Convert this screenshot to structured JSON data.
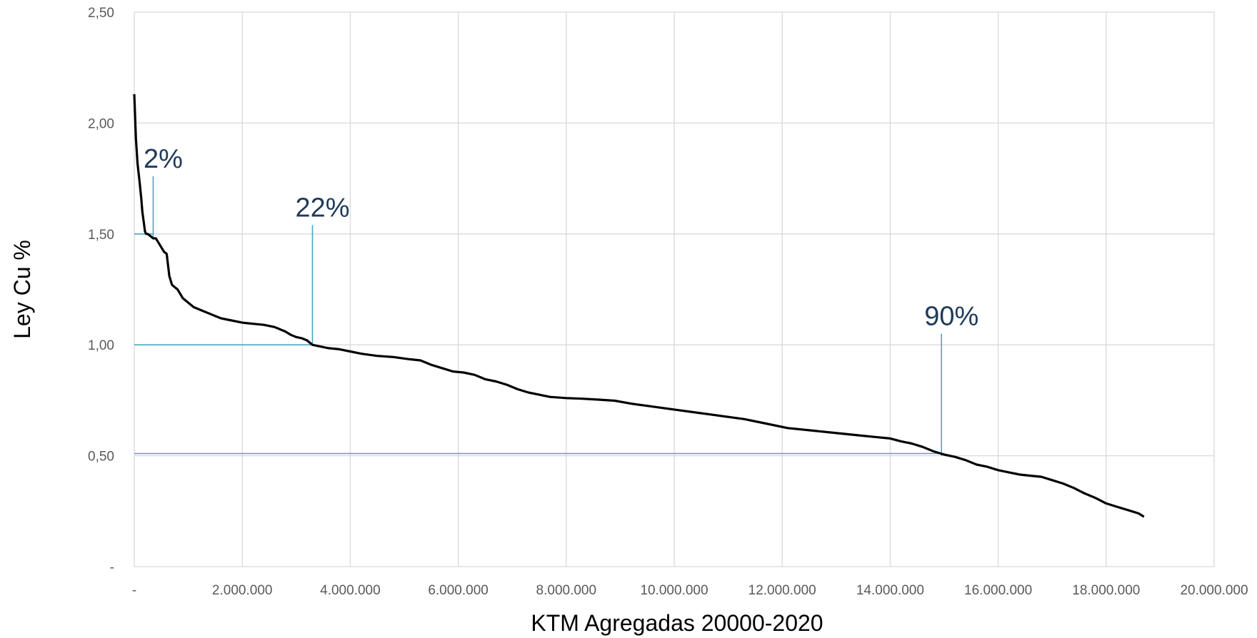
{
  "chart_data": {
    "type": "line",
    "title": "",
    "xlabel": "KTM Agregadas 20000-2020",
    "ylabel": "Ley Cu %",
    "xlim": [
      0,
      20000000
    ],
    "ylim": [
      0,
      2.5
    ],
    "grid": true,
    "x_ticks": [
      {
        "value": 0,
        "label": "-"
      },
      {
        "value": 2000000,
        "label": "2.000.000"
      },
      {
        "value": 4000000,
        "label": "4.000.000"
      },
      {
        "value": 6000000,
        "label": "6.000.000"
      },
      {
        "value": 8000000,
        "label": "8.000.000"
      },
      {
        "value": 10000000,
        "label": "10.000.000"
      },
      {
        "value": 12000000,
        "label": "12.000.000"
      },
      {
        "value": 14000000,
        "label": "14.000.000"
      },
      {
        "value": 16000000,
        "label": "16.000.000"
      },
      {
        "value": 18000000,
        "label": "18.000.000"
      },
      {
        "value": 20000000,
        "label": "20.000.000"
      }
    ],
    "y_ticks": [
      {
        "value": 0,
        "label": "-"
      },
      {
        "value": 0.5,
        "label": "0,50"
      },
      {
        "value": 1.0,
        "label": "1,00"
      },
      {
        "value": 1.5,
        "label": "1,50"
      },
      {
        "value": 2.0,
        "label": "2,00"
      },
      {
        "value": 2.5,
        "label": "2,50"
      }
    ],
    "series": [
      {
        "color": "#000000",
        "x": [
          0,
          30000,
          60000,
          100000,
          130000,
          150000,
          200000,
          220000,
          250000,
          300000,
          350000,
          400000,
          450000,
          500000,
          550000,
          600000,
          650000,
          700000,
          750000,
          800000,
          850000,
          900000,
          1000000,
          1100000,
          1200000,
          1300000,
          1400000,
          1500000,
          1600000,
          1700000,
          1800000,
          2000000,
          2200000,
          2400000,
          2600000,
          2800000,
          2900000,
          3000000,
          3100000,
          3200000,
          3300000,
          3400000,
          3600000,
          3800000,
          4000000,
          4200000,
          4500000,
          4800000,
          5100000,
          5300000,
          5500000,
          5700000,
          5900000,
          6100000,
          6300000,
          6500000,
          6700000,
          6900000,
          7100000,
          7300000,
          7500000,
          7700000,
          8000000,
          8300000,
          8600000,
          8900000,
          9200000,
          9500000,
          9800000,
          10100000,
          10400000,
          10700000,
          11000000,
          11300000,
          11700000,
          12100000,
          12500000,
          12900000,
          13300000,
          13700000,
          14000000,
          14200000,
          14400000,
          14600000,
          14800000,
          15000000,
          15200000,
          15400000,
          15600000,
          15800000,
          16000000,
          16200000,
          16400000,
          16600000,
          16800000,
          17000000,
          17200000,
          17400000,
          17600000,
          17800000,
          18000000,
          18200000,
          18400000,
          18600000,
          18700000
        ],
        "y": [
          2.13,
          1.93,
          1.82,
          1.73,
          1.66,
          1.6,
          1.51,
          1.5,
          1.5,
          1.49,
          1.48,
          1.48,
          1.46,
          1.44,
          1.42,
          1.41,
          1.31,
          1.27,
          1.26,
          1.25,
          1.23,
          1.21,
          1.19,
          1.17,
          1.16,
          1.15,
          1.14,
          1.13,
          1.12,
          1.115,
          1.11,
          1.1,
          1.095,
          1.09,
          1.08,
          1.06,
          1.045,
          1.035,
          1.03,
          1.02,
          1.0,
          0.995,
          0.985,
          0.98,
          0.97,
          0.96,
          0.95,
          0.945,
          0.935,
          0.93,
          0.91,
          0.895,
          0.88,
          0.875,
          0.865,
          0.845,
          0.835,
          0.82,
          0.8,
          0.785,
          0.775,
          0.765,
          0.76,
          0.757,
          0.753,
          0.748,
          0.735,
          0.725,
          0.715,
          0.705,
          0.695,
          0.685,
          0.675,
          0.665,
          0.645,
          0.625,
          0.615,
          0.605,
          0.595,
          0.585,
          0.578,
          0.565,
          0.555,
          0.54,
          0.52,
          0.505,
          0.495,
          0.48,
          0.46,
          0.45,
          0.435,
          0.425,
          0.415,
          0.41,
          0.405,
          0.39,
          0.375,
          0.355,
          0.33,
          0.31,
          0.285,
          0.27,
          0.255,
          0.24,
          0.225
        ]
      }
    ],
    "reference_lines": {
      "color": "#4aa6c5",
      "horizontal": [
        {
          "y": 1.5,
          "x_end": 350000
        },
        {
          "y": 1.0,
          "x_end": 3300000
        },
        {
          "y": 0.51,
          "x_end": 15000000
        }
      ]
    },
    "annotations": [
      {
        "text": "2%",
        "x": 350000,
        "y_bottom": 1.48,
        "y_top": 1.76
      },
      {
        "text": "22%",
        "x": 3300000,
        "y_bottom": 1.0,
        "y_top": 1.54
      },
      {
        "text": "90%",
        "x": 14950000,
        "y_bottom": 0.5,
        "y_top": 1.05
      }
    ]
  }
}
